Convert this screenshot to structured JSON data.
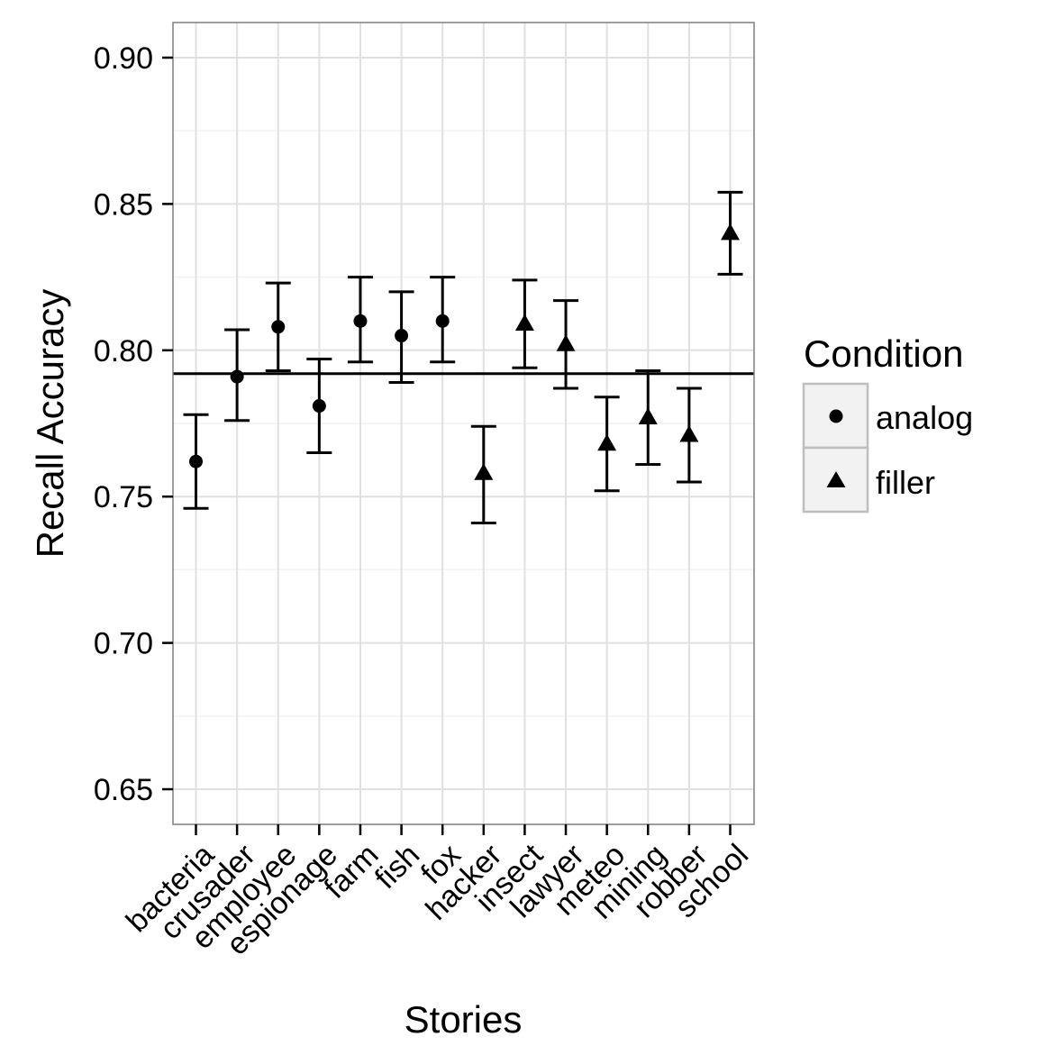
{
  "chart_data": {
    "type": "scatter",
    "xlabel": "Stories",
    "ylabel": "Recall Accuracy",
    "ylim": [
      0.638,
      0.912
    ],
    "yticks": [
      "0.65",
      "0.70",
      "0.75",
      "0.80",
      "0.85",
      "0.90"
    ],
    "grid": true,
    "legend_position": "right",
    "legend": {
      "title": "Condition",
      "entries": [
        "analog",
        "filler"
      ]
    },
    "categories": [
      "bacteria",
      "crusader",
      "employee",
      "espionage",
      "farm",
      "fish",
      "fox",
      "hacker",
      "insect",
      "lawyer",
      "meteo",
      "mining",
      "robber",
      "school"
    ],
    "reference_line": 0.792,
    "series": [
      {
        "name": "analog",
        "shape": "circle",
        "points": [
          {
            "x": "bacteria",
            "y": 0.762,
            "ymin": 0.746,
            "ymax": 0.778
          },
          {
            "x": "crusader",
            "y": 0.791,
            "ymin": 0.776,
            "ymax": 0.807
          },
          {
            "x": "employee",
            "y": 0.808,
            "ymin": 0.793,
            "ymax": 0.823
          },
          {
            "x": "espionage",
            "y": 0.781,
            "ymin": 0.765,
            "ymax": 0.797
          },
          {
            "x": "farm",
            "y": 0.81,
            "ymin": 0.796,
            "ymax": 0.825
          },
          {
            "x": "fish",
            "y": 0.805,
            "ymin": 0.789,
            "ymax": 0.82
          },
          {
            "x": "fox",
            "y": 0.81,
            "ymin": 0.796,
            "ymax": 0.825
          }
        ]
      },
      {
        "name": "filler",
        "shape": "triangle",
        "points": [
          {
            "x": "hacker",
            "y": 0.758,
            "ymin": 0.741,
            "ymax": 0.774
          },
          {
            "x": "insect",
            "y": 0.809,
            "ymin": 0.794,
            "ymax": 0.824
          },
          {
            "x": "lawyer",
            "y": 0.802,
            "ymin": 0.787,
            "ymax": 0.817
          },
          {
            "x": "meteo",
            "y": 0.768,
            "ymin": 0.752,
            "ymax": 0.784
          },
          {
            "x": "mining",
            "y": 0.777,
            "ymin": 0.761,
            "ymax": 0.793
          },
          {
            "x": "robber",
            "y": 0.771,
            "ymin": 0.755,
            "ymax": 0.787
          },
          {
            "x": "school",
            "y": 0.84,
            "ymin": 0.826,
            "ymax": 0.854
          }
        ]
      }
    ]
  }
}
